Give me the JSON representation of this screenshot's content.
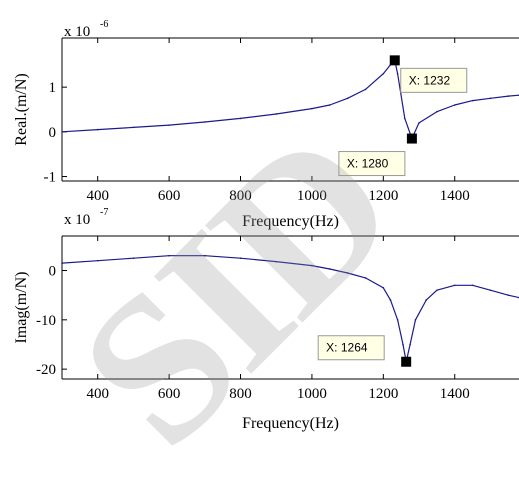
{
  "watermark": "SID",
  "colors": {
    "line": "#1a1a8c",
    "axis": "#000000",
    "datatip_bg": "#ffffe6",
    "marker": "#000000"
  },
  "chart_data": [
    {
      "type": "line",
      "title": "",
      "xlabel": "Frequency(Hz)",
      "ylabel": "Real.(m/N)",
      "exponent_label": "x 10",
      "exponent_power": "-6",
      "xlim": [
        300,
        1580
      ],
      "ylim": [
        -1.1,
        2.1
      ],
      "xticks": [
        400,
        600,
        800,
        1000,
        1200,
        1400
      ],
      "yticks": [
        -1,
        0,
        1
      ],
      "grid": false,
      "series": [
        {
          "x": [
            300,
            400,
            500,
            600,
            700,
            800,
            900,
            1000,
            1050,
            1100,
            1150,
            1200,
            1220,
            1232,
            1240,
            1260,
            1280,
            1300,
            1350,
            1400,
            1450,
            1500,
            1550,
            1580
          ],
          "y": [
            0.0,
            0.05,
            0.1,
            0.15,
            0.22,
            0.3,
            0.4,
            0.52,
            0.6,
            0.75,
            0.95,
            1.3,
            1.5,
            1.6,
            1.3,
            0.3,
            -0.15,
            0.2,
            0.45,
            0.6,
            0.7,
            0.75,
            0.8,
            0.82
          ]
        }
      ],
      "annotations": [
        {
          "label": "X: 1232",
          "x": 1232,
          "y": 1.6
        },
        {
          "label": "X: 1280",
          "x": 1280,
          "y": -0.15
        }
      ]
    },
    {
      "type": "line",
      "title": "",
      "xlabel": "Frequency(Hz)",
      "ylabel": "Imag(m/N)",
      "exponent_label": "x 10",
      "exponent_power": "-7",
      "xlim": [
        300,
        1580
      ],
      "ylim": [
        -22,
        7
      ],
      "xticks": [
        400,
        600,
        800,
        1000,
        1200,
        1400
      ],
      "yticks": [
        -20,
        -10,
        0
      ],
      "grid": false,
      "series": [
        {
          "x": [
            300,
            400,
            500,
            600,
            700,
            800,
            900,
            1000,
            1050,
            1100,
            1150,
            1200,
            1220,
            1240,
            1255,
            1264,
            1275,
            1290,
            1320,
            1350,
            1400,
            1450,
            1500,
            1550,
            1580
          ],
          "y": [
            1.5,
            2.0,
            2.5,
            3.0,
            3.0,
            2.5,
            1.8,
            1.0,
            0.3,
            -0.5,
            -1.5,
            -3.5,
            -6.0,
            -10.0,
            -15.0,
            -18.5,
            -15.0,
            -10.0,
            -6.0,
            -4.0,
            -3.0,
            -3.0,
            -4.0,
            -5.0,
            -5.5
          ]
        }
      ],
      "annotations": [
        {
          "label": "X: 1264",
          "x": 1264,
          "y": -18.5
        }
      ]
    }
  ]
}
